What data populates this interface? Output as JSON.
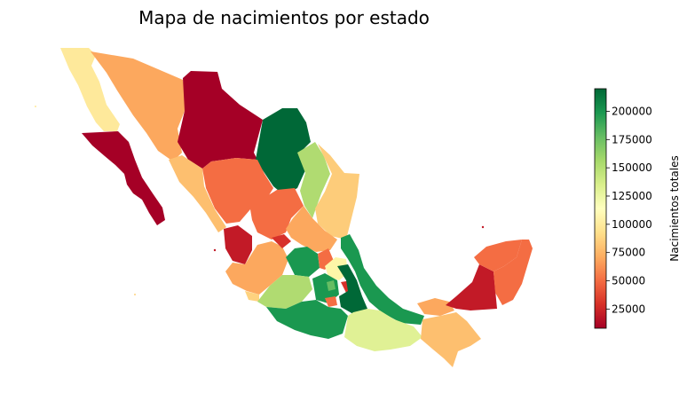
{
  "title": "Mapa de nacimientos por estado",
  "colorbar": {
    "label": "Nacimientos totales",
    "min": 8000,
    "max": 220000,
    "ticks": [
      "25000",
      "50000",
      "75000",
      "100000",
      "125000",
      "150000",
      "175000",
      "200000"
    ],
    "tick_values": [
      25000,
      50000,
      75000,
      100000,
      125000,
      150000,
      175000,
      200000
    ],
    "colormap": "RdYlGn"
  },
  "chart_data": {
    "type": "heatmap",
    "title": "Mapa de nacimientos por estado",
    "colorbar_label": "Nacimientos totales",
    "value_range": [
      8000,
      220000
    ],
    "colormap": "RdYlGn"
  }
}
